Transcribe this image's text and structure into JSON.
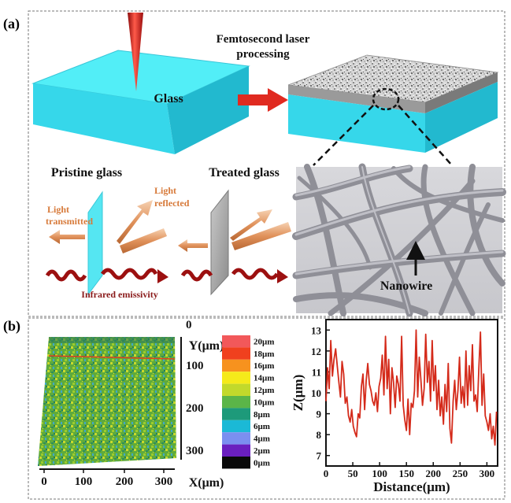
{
  "panel_a": {
    "label": "(a)",
    "glass_label": "Glass",
    "process_label_line1": "Femtosecond laser",
    "process_label_line2": "processing",
    "pristine_label": "Pristine glass",
    "treated_label": "Treated glass",
    "light_transmitted_line1": "Light",
    "light_transmitted_line2": "transmitted",
    "light_reflected_line1": "Light",
    "light_reflected_line2": "reflected",
    "infrared_label": "Infrared emissivity",
    "nanowire_label": "Nanowire"
  },
  "panel_b": {
    "label": "(b)",
    "map_x_ticks": [
      "0",
      "100",
      "200",
      "300"
    ],
    "map_x_label": "X(μm)",
    "map_y_ticks": [
      "0",
      "100",
      "200",
      "300"
    ],
    "map_y_label": "Y(μm)",
    "colorbar": [
      {
        "label": "20μm",
        "color": "#f2585a"
      },
      {
        "label": "18μm",
        "color": "#f0401e"
      },
      {
        "label": "16μm",
        "color": "#f7921e"
      },
      {
        "label": "14μm",
        "color": "#f5ea1a"
      },
      {
        "label": "12μm",
        "color": "#c2d92b"
      },
      {
        "label": "10μm",
        "color": "#5bb548"
      },
      {
        "label": "8μm",
        "color": "#1d9a7a"
      },
      {
        "label": "6μm",
        "color": "#1bb9d6"
      },
      {
        "label": "4μm",
        "color": "#7b8ff0"
      },
      {
        "label": "2μm",
        "color": "#6a1fbf"
      },
      {
        "label": "0μm",
        "color": "#0a0a0a"
      }
    ]
  },
  "chart_data": {
    "type": "line",
    "xlabel": "Distance(μm)",
    "ylabel": "Z(μm)",
    "xlim": [
      0,
      320
    ],
    "ylim": [
      6.5,
      13.5
    ],
    "x_ticks": [
      0,
      50,
      100,
      150,
      200,
      250,
      300
    ],
    "y_ticks": [
      7,
      8,
      9,
      10,
      11,
      12,
      13
    ],
    "line_color": "#d42a1a",
    "x": [
      0,
      3,
      6,
      9,
      12,
      15,
      18,
      21,
      24,
      27,
      30,
      33,
      36,
      39,
      42,
      45,
      48,
      51,
      54,
      57,
      60,
      63,
      66,
      69,
      72,
      75,
      78,
      81,
      84,
      87,
      90,
      93,
      96,
      99,
      102,
      105,
      108,
      111,
      114,
      117,
      120,
      123,
      126,
      129,
      132,
      135,
      138,
      141,
      144,
      147,
      150,
      153,
      156,
      159,
      162,
      165,
      168,
      171,
      174,
      177,
      180,
      183,
      186,
      189,
      192,
      195,
      198,
      201,
      204,
      207,
      210,
      213,
      216,
      219,
      222,
      225,
      228,
      231,
      234,
      237,
      240,
      243,
      246,
      249,
      252,
      255,
      258,
      261,
      264,
      267,
      270,
      273,
      276,
      279,
      282,
      285,
      288,
      291,
      294,
      297,
      300,
      303,
      306,
      309,
      312,
      315,
      318
    ],
    "y": [
      9.6,
      11.2,
      10.2,
      12.5,
      10.8,
      11.6,
      12.1,
      11.3,
      10.5,
      9.8,
      11.5,
      10.9,
      9.5,
      9.8,
      8.9,
      8.6,
      9.2,
      8.4,
      8.1,
      7.9,
      9.0,
      8.8,
      10.3,
      10.9,
      9.2,
      10.6,
      11.4,
      10.4,
      10.1,
      9.6,
      9.4,
      10.0,
      9.1,
      10.3,
      10.7,
      11.8,
      9.9,
      12.7,
      10.2,
      11.6,
      9.0,
      11.2,
      10.5,
      9.3,
      10.8,
      10.4,
      9.6,
      12.7,
      9.4,
      8.7,
      8.2,
      9.7,
      8.0,
      9.5,
      9.3,
      10.1,
      13.0,
      9.8,
      11.7,
      10.6,
      9.4,
      10.2,
      12.8,
      10.5,
      11.5,
      9.6,
      12.5,
      10.1,
      11.3,
      9.2,
      10.6,
      8.9,
      9.8,
      8.5,
      10.4,
      9.1,
      11.4,
      8.3,
      7.6,
      9.6,
      10.6,
      9.2,
      10.1,
      11.7,
      9.5,
      10.3,
      9.3,
      12.0,
      9.4,
      11.3,
      10.1,
      12.3,
      9.6,
      9.9,
      9.1,
      11.2,
      12.9,
      9.4,
      10.9,
      8.9,
      8.6,
      8.2,
      9.0,
      7.8,
      8.4,
      7.5,
      9.1
    ]
  }
}
